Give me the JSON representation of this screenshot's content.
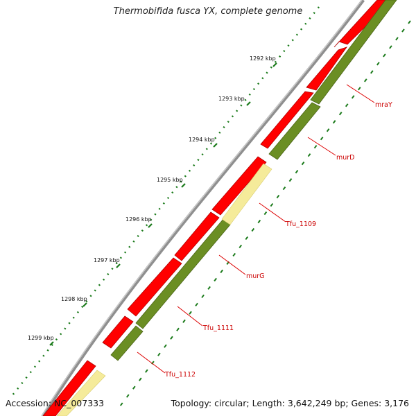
{
  "title": "Thermobifida fusca YX, complete genome",
  "accession": "Accession: NC_007333",
  "topology": "Topology: circular; Length: 3,642,249 bp; Genes: 3,176",
  "colors": {
    "backbone": "#8a8a8a",
    "forward_gene": "#ff0000",
    "reverse_gene": "#6b8e23",
    "pseudo_gene": "#f5eb9a",
    "tick": "#1a7a1a",
    "label": "#cc0000"
  },
  "ticks": [
    "1292 kbp",
    "1293 kbp",
    "1294 kbp",
    "1295 kbp",
    "1296 kbp",
    "1297 kbp",
    "1298 kbp",
    "1299 kbp"
  ],
  "genes": [
    {
      "name": "mraY",
      "color_key": "reverse_gene"
    },
    {
      "name": "murD",
      "color_key": "reverse_gene"
    },
    {
      "name": "Tfu_1109",
      "color_key": "pseudo_gene"
    },
    {
      "name": "murG",
      "color_key": "reverse_gene"
    },
    {
      "name": "Tfu_1111",
      "color_key": "reverse_gene"
    },
    {
      "name": "Tfu_1112",
      "color_key": "reverse_gene"
    }
  ]
}
